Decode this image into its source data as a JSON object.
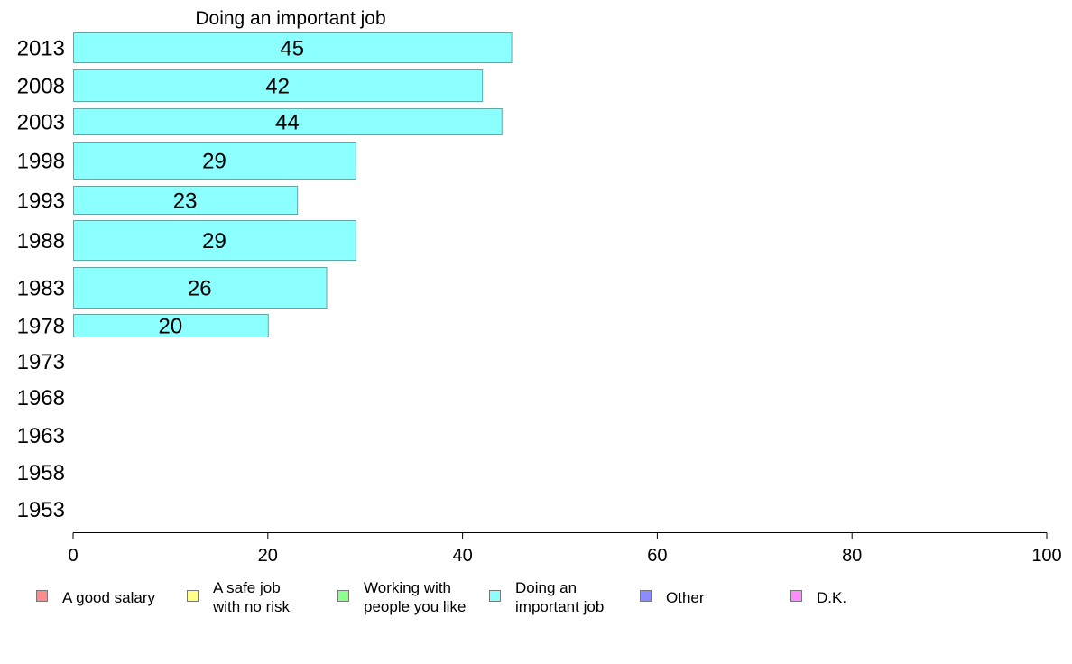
{
  "chart_data": {
    "type": "bar",
    "orientation": "horizontal",
    "title": "Doing an important job",
    "categories": [
      "2013",
      "2008",
      "2003",
      "1998",
      "1993",
      "1988",
      "1983",
      "1978",
      "1973",
      "1968",
      "1963",
      "1958",
      "1953"
    ],
    "series": [
      {
        "name": "Doing an important job",
        "values": [
          45,
          42,
          44,
          29,
          23,
          29,
          26,
          20,
          null,
          null,
          null,
          null,
          null
        ],
        "labels": [
          "45",
          "42",
          "44",
          "29",
          "23",
          "29",
          "26",
          "20",
          "",
          "",
          "",
          "",
          ""
        ]
      }
    ],
    "xlim": [
      0,
      100
    ],
    "xticks": [
      "0",
      "20",
      "40",
      "60",
      "80",
      "100"
    ],
    "grid": false,
    "legend_position": "bottom",
    "legend": [
      {
        "lines": [
          "A good salary"
        ],
        "color": "#ff8c8c"
      },
      {
        "lines": [
          "A safe job",
          "with no risk"
        ],
        "color": "#ffff8c"
      },
      {
        "lines": [
          "Working with",
          "people you like"
        ],
        "color": "#8cff8c"
      },
      {
        "lines": [
          "Doing an",
          "important job"
        ],
        "color": "#8cffff"
      },
      {
        "lines": [
          "Other"
        ],
        "color": "#8c8cff"
      },
      {
        "lines": [
          "D.K."
        ],
        "color": "#ff8cff"
      }
    ],
    "colors": {
      "bar_fill": "#8cffff",
      "bar_stroke": "#5fa8a8",
      "axis": "#000000"
    }
  }
}
